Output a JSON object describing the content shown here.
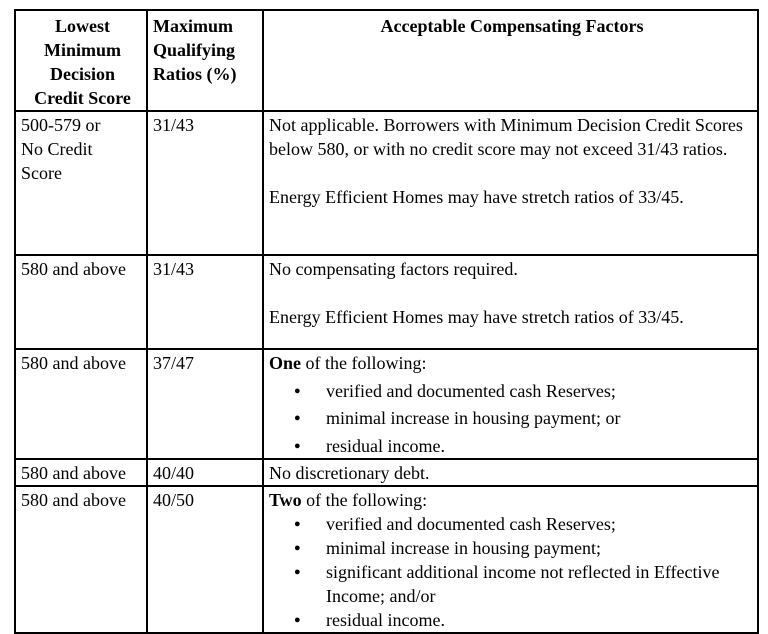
{
  "colors": {
    "background": "#ffffff",
    "border": "#000000",
    "text": "#000000"
  },
  "table": {
    "headers": {
      "score": "Lowest\nMinimum\nDecision\nCredit Score",
      "ratio": "Maximum\nQualifying\nRatios (%)",
      "factors": "Acceptable Compensating Factors"
    },
    "rows": [
      {
        "score": "500-579 or\nNo Credit\nScore",
        "ratio": "31/43",
        "factors": {
          "paragraphs": [
            "Not applicable. Borrowers with Minimum Decision Credit Scores below 580, or with no credit score may not exceed 31/43 ratios.",
            "Energy Efficient Homes may have stretch ratios of 33/45."
          ]
        }
      },
      {
        "score": "580 and above",
        "ratio": "31/43",
        "factors": {
          "paragraphs": [
            "No compensating factors required.",
            "Energy Efficient Homes may have stretch ratios of 33/45."
          ]
        }
      },
      {
        "score": "580 and above",
        "ratio": "37/47",
        "factors": {
          "lead": "One",
          "lead_rest": " of the following:",
          "bullets": [
            "verified and documented cash Reserves;",
            "minimal increase in housing payment; or",
            "residual income."
          ]
        }
      },
      {
        "score": "580 and above",
        "ratio": "40/40",
        "factors": {
          "paragraphs": [
            "No discretionary debt."
          ]
        }
      },
      {
        "score": "580 and above",
        "ratio": "40/50",
        "factors": {
          "lead": "Two",
          "lead_rest": " of the following:",
          "bullets": [
            "verified and documented cash Reserves;",
            "minimal increase in housing payment;",
            "significant additional income not reflected in Effective Income; and/or",
            "residual income."
          ]
        }
      }
    ]
  }
}
